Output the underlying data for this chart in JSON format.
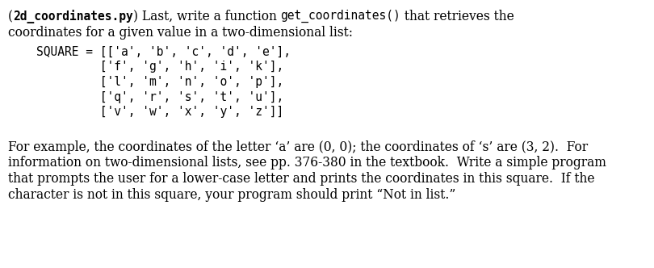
{
  "bg_color": "#ffffff",
  "text_color": "#000000",
  "figsize": [
    8.1,
    3.32
  ],
  "dpi": 100,
  "font_size_body": 11.2,
  "font_size_code": 10.5,
  "code_lines": [
    "    SQUARE = [['a', 'b', 'c', 'd', 'e'],",
    "             ['f', 'g', 'h', 'i', 'k'],",
    "             ['l', 'm', 'n', 'o', 'p'],",
    "             ['q', 'r', 's', 't', 'u'],",
    "             ['v', 'w', 'x', 'y', 'z']]"
  ],
  "para2_lines": [
    "For example, the coordinates of the letter ‘a’ are (0, 0); the coordinates of ‘s’ are (3, 2).  For",
    "information on two-dimensional lists, see pp. 376-380 in the textbook.  Write a simple program",
    "that prompts the user for a lower-case letter and prints the coordinates in this square.  If the",
    "character is not in this square, your program should print “Not in list.”"
  ]
}
